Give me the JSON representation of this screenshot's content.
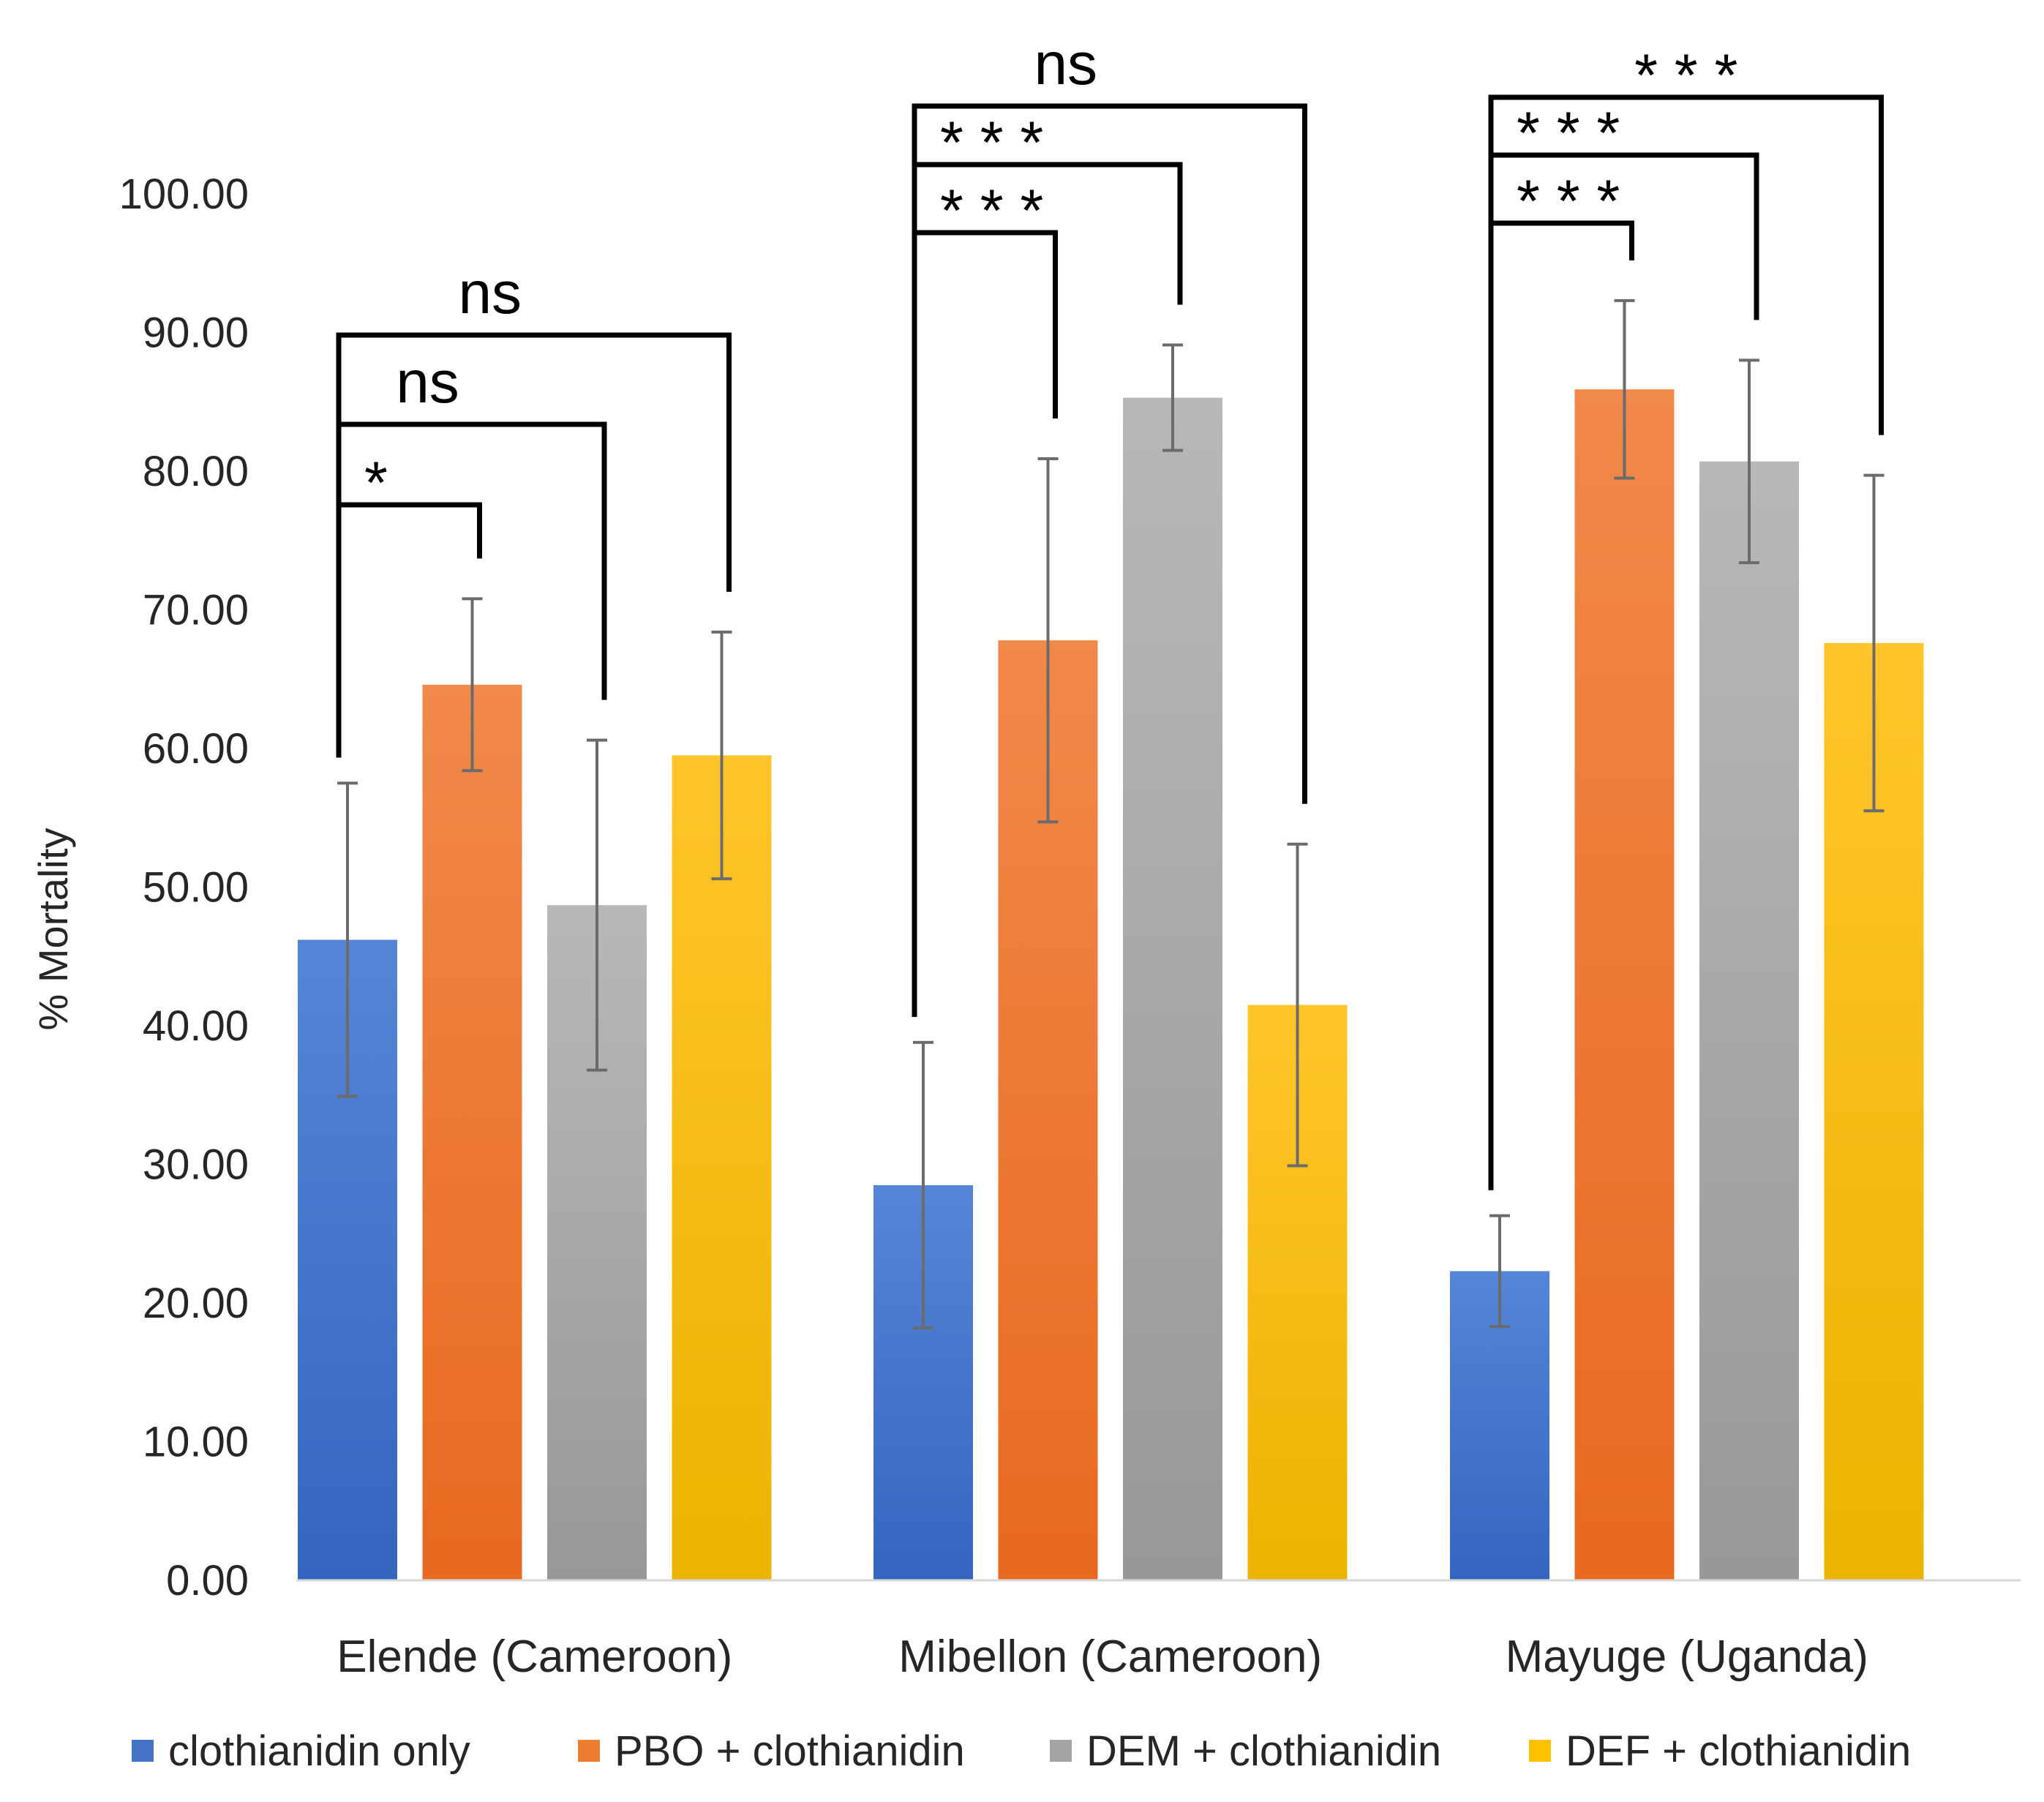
{
  "chart_data": {
    "type": "bar",
    "title": "",
    "xlabel": "",
    "ylabel": "% Mortality",
    "ylim": [
      0,
      100
    ],
    "yticks": [
      "0.00",
      "10.00",
      "20.00",
      "30.00",
      "40.00",
      "50.00",
      "60.00",
      "70.00",
      "80.00",
      "90.00",
      "100.00"
    ],
    "grid": false,
    "legend_position": "bottom",
    "categories": [
      "Elende (Cameroon)",
      "Mibellon (Cameroon)",
      "Mayuge (Uganda)"
    ],
    "series": [
      {
        "name": "clothianidin only",
        "color": "#4472c4",
        "values": [
          46.2,
          28.5,
          22.3
        ],
        "errors": [
          11.3,
          10.3,
          4.0
        ]
      },
      {
        "name": "PBO + clothianidin",
        "color": "#ed7d31",
        "values": [
          64.6,
          67.8,
          85.9
        ],
        "errors": [
          6.2,
          13.1,
          6.4
        ]
      },
      {
        "name": "DEM + clothianidin",
        "color": "#a5a5a5",
        "values": [
          48.7,
          85.3,
          80.7
        ],
        "errors": [
          11.9,
          3.8,
          7.3
        ]
      },
      {
        "name": "DEF + clothianidin",
        "color": "#ffc000",
        "values": [
          59.5,
          41.5,
          67.6
        ],
        "errors": [
          8.9,
          11.6,
          12.1
        ]
      }
    ],
    "significance": [
      {
        "category_index": 0,
        "comparisons": [
          {
            "from_series": 0,
            "to_series": 1,
            "label": "*"
          },
          {
            "from_series": 0,
            "to_series": 2,
            "label": "ns"
          },
          {
            "from_series": 0,
            "to_series": 3,
            "label": "ns"
          }
        ]
      },
      {
        "category_index": 1,
        "comparisons": [
          {
            "from_series": 0,
            "to_series": 1,
            "label": "***"
          },
          {
            "from_series": 0,
            "to_series": 2,
            "label": "***"
          },
          {
            "from_series": 0,
            "to_series": 3,
            "label": "ns"
          }
        ]
      },
      {
        "category_index": 2,
        "comparisons": [
          {
            "from_series": 0,
            "to_series": 1,
            "label": "***"
          },
          {
            "from_series": 0,
            "to_series": 2,
            "label": "***"
          },
          {
            "from_series": 0,
            "to_series": 3,
            "label": "***"
          }
        ]
      }
    ]
  }
}
